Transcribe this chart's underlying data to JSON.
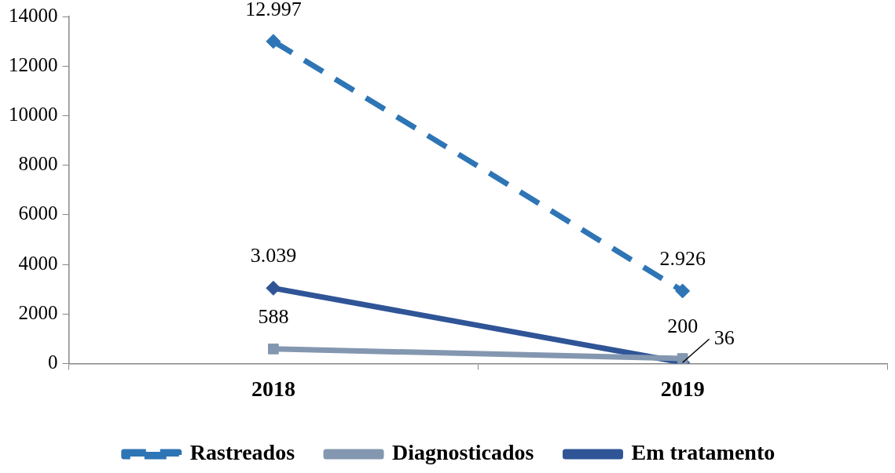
{
  "chart_data": {
    "type": "line",
    "categories": [
      "2018",
      "2019"
    ],
    "series": [
      {
        "name": "Rastreados",
        "color": "#2e75b6",
        "values": [
          12997,
          2926
        ],
        "value_labels": [
          "12.997",
          "2.926"
        ],
        "line_style": "dashed",
        "marker": "diamond"
      },
      {
        "name": "Diagnosticados",
        "color": "#8497b0",
        "values": [
          588,
          200
        ],
        "value_labels": [
          "588",
          "200"
        ],
        "line_style": "solid",
        "marker": "square"
      },
      {
        "name": "Em tratamento",
        "color": "#2f5597",
        "values": [
          3039,
          36
        ],
        "value_labels": [
          "3.039",
          "36"
        ],
        "line_style": "solid",
        "marker": "diamond"
      }
    ],
    "ylim": [
      0,
      14000
    ],
    "yticks": [
      0,
      2000,
      4000,
      6000,
      8000,
      10000,
      12000,
      14000
    ],
    "grid": false,
    "legend": "bottom"
  }
}
